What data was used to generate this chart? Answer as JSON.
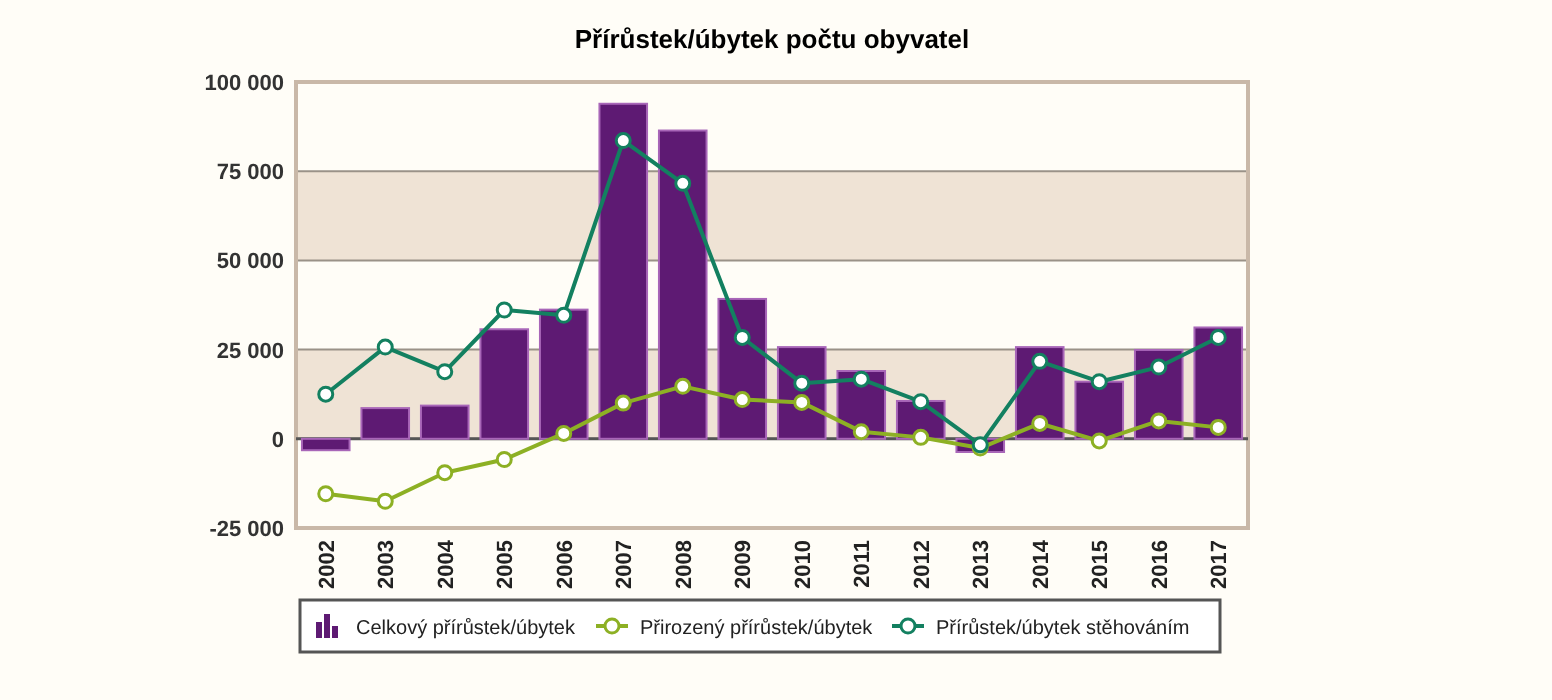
{
  "chart_data": {
    "type": "bar",
    "title": "Přírůstek/úbytek počtu obyvatel",
    "categories": [
      "2002",
      "2003",
      "2004",
      "2005",
      "2006",
      "2007",
      "2008",
      "2009",
      "2010",
      "2011",
      "2012",
      "2013",
      "2014",
      "2015",
      "2016",
      "2017"
    ],
    "series": [
      {
        "name": "Celkový přírůstek/úbytek",
        "color": "#5e1a73",
        "values": [
          -3200,
          8600,
          9300,
          30700,
          36200,
          93900,
          86400,
          39200,
          25700,
          19000,
          10600,
          -3700,
          25700,
          16000,
          24900,
          31200
        ]
      },
      {
        "name": "Přirozený přírůstek/úbytek",
        "type": "line",
        "color": "#8db024",
        "values": [
          -15400,
          -17500,
          -9500,
          -5800,
          1500,
          10000,
          14700,
          11000,
          10200,
          2000,
          400,
          -2600,
          4300,
          -600,
          5000,
          3200
        ]
      },
      {
        "name": "Přírůstek/úbytek stěhováním",
        "type": "line",
        "color": "#138060",
        "values": [
          12500,
          25700,
          18800,
          36100,
          34600,
          83600,
          71600,
          28400,
          15600,
          16700,
          10400,
          -1700,
          21700,
          16000,
          20100,
          28400
        ]
      }
    ],
    "ylim": [
      -25000,
      100000
    ],
    "yticks": [
      {
        "value": -25000,
        "label": "-25 000"
      },
      0,
      {
        "value": 25000,
        "label": "25 000"
      },
      {
        "value": 50000,
        "label": "50 000"
      },
      {
        "value": 75000,
        "label": "75 000"
      },
      {
        "value": 100000,
        "label": "100 000"
      }
    ],
    "grid": "y",
    "legend": "bottom",
    "marker": "circle"
  }
}
